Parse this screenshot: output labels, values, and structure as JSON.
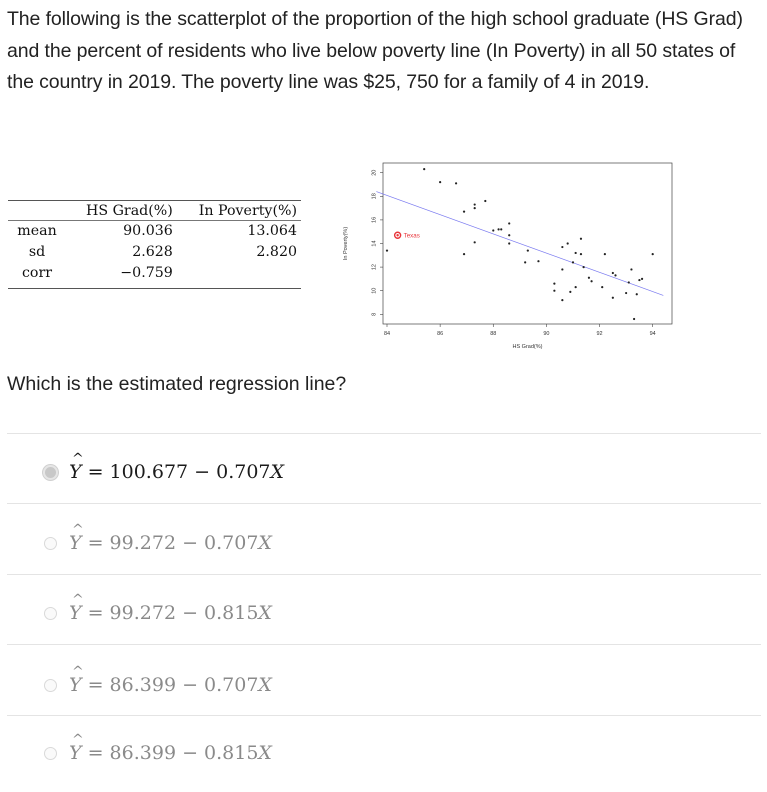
{
  "intro": {
    "text": "The following is the scatterplot of the proportion of the high school graduate (HS Grad) and the percent of residents who live below poverty line (In Poverty) in all 50 states of the country in 2019.  The poverty line was $25, 750 for a family of 4 in 2019."
  },
  "stats_table": {
    "headers": [
      "",
      "HS Grad(%)",
      "In Poverty(%)"
    ],
    "rows": [
      {
        "label": "mean",
        "hs": "90.036",
        "pov": "13.064"
      },
      {
        "label": "sd",
        "hs": "2.628",
        "pov": "2.820"
      },
      {
        "label": "corr",
        "hs": "−0.759",
        "pov": ""
      }
    ]
  },
  "question": {
    "text": "Which is the estimated regression line?"
  },
  "options": [
    {
      "lhs": "Y",
      "eq": " = 100.677 − 0.707",
      "var": "X",
      "selected": true
    },
    {
      "lhs": "Y",
      "eq": " = 99.272 − 0.707",
      "var": "X",
      "selected": false
    },
    {
      "lhs": "Y",
      "eq": " = 99.272 − 0.815",
      "var": "X",
      "selected": false
    },
    {
      "lhs": "Y",
      "eq": " = 86.399 − 0.707",
      "var": "X",
      "selected": false
    },
    {
      "lhs": "Y",
      "eq": " = 86.399 − 0.815",
      "var": "X",
      "selected": false
    }
  ],
  "colors": {
    "regression_line": "#7b7bf0",
    "highlight": "#e8343a",
    "points": "#222222"
  },
  "chart_data": {
    "type": "scatter",
    "title": "",
    "xlabel": "HS Grad(%)",
    "ylabel": "In Poverty(%)",
    "xlim": [
      83.6,
      94.4
    ],
    "ylim": [
      7.5,
      20.7
    ],
    "xticks": [
      84,
      86,
      88,
      90,
      92,
      94
    ],
    "yticks": [
      8,
      10,
      12,
      14,
      16,
      18,
      20
    ],
    "grid": false,
    "annotation": {
      "label": "Texas",
      "x": 84.4,
      "y": 14.7
    },
    "regression_line": {
      "x": [
        83.6,
        94.4
      ],
      "y": [
        18.4,
        9.6
      ]
    },
    "points": [
      [
        85.4,
        20.3
      ],
      [
        86.0,
        19.2
      ],
      [
        86.6,
        19.1
      ],
      [
        87.7,
        17.6
      ],
      [
        87.3,
        17.3
      ],
      [
        87.3,
        17.0
      ],
      [
        86.9,
        16.7
      ],
      [
        88.6,
        15.7
      ],
      [
        88.0,
        15.1
      ],
      [
        88.2,
        15.2
      ],
      [
        88.3,
        15.2
      ],
      [
        88.6,
        14.7
      ],
      [
        88.6,
        14.0
      ],
      [
        87.3,
        14.1
      ],
      [
        86.9,
        13.1
      ],
      [
        84.0,
        13.4
      ],
      [
        89.3,
        13.4
      ],
      [
        89.2,
        12.4
      ],
      [
        89.7,
        12.5
      ],
      [
        90.6,
        13.7
      ],
      [
        90.8,
        14.0
      ],
      [
        91.3,
        14.4
      ],
      [
        91.1,
        13.2
      ],
      [
        91.3,
        13.1
      ],
      [
        92.2,
        13.1
      ],
      [
        94.0,
        13.1
      ],
      [
        91.0,
        12.4
      ],
      [
        91.4,
        12.0
      ],
      [
        90.6,
        11.8
      ],
      [
        93.2,
        11.8
      ],
      [
        92.5,
        11.5
      ],
      [
        92.6,
        11.3
      ],
      [
        91.6,
        11.1
      ],
      [
        91.7,
        10.8
      ],
      [
        90.3,
        10.6
      ],
      [
        93.1,
        10.7
      ],
      [
        93.5,
        10.9
      ],
      [
        93.6,
        11.0
      ],
      [
        91.1,
        10.3
      ],
      [
        92.1,
        10.3
      ],
      [
        90.3,
        10.0
      ],
      [
        90.9,
        9.9
      ],
      [
        93.0,
        9.8
      ],
      [
        93.4,
        9.7
      ],
      [
        92.5,
        9.4
      ],
      [
        90.6,
        9.2
      ],
      [
        93.3,
        7.6
      ]
    ]
  }
}
